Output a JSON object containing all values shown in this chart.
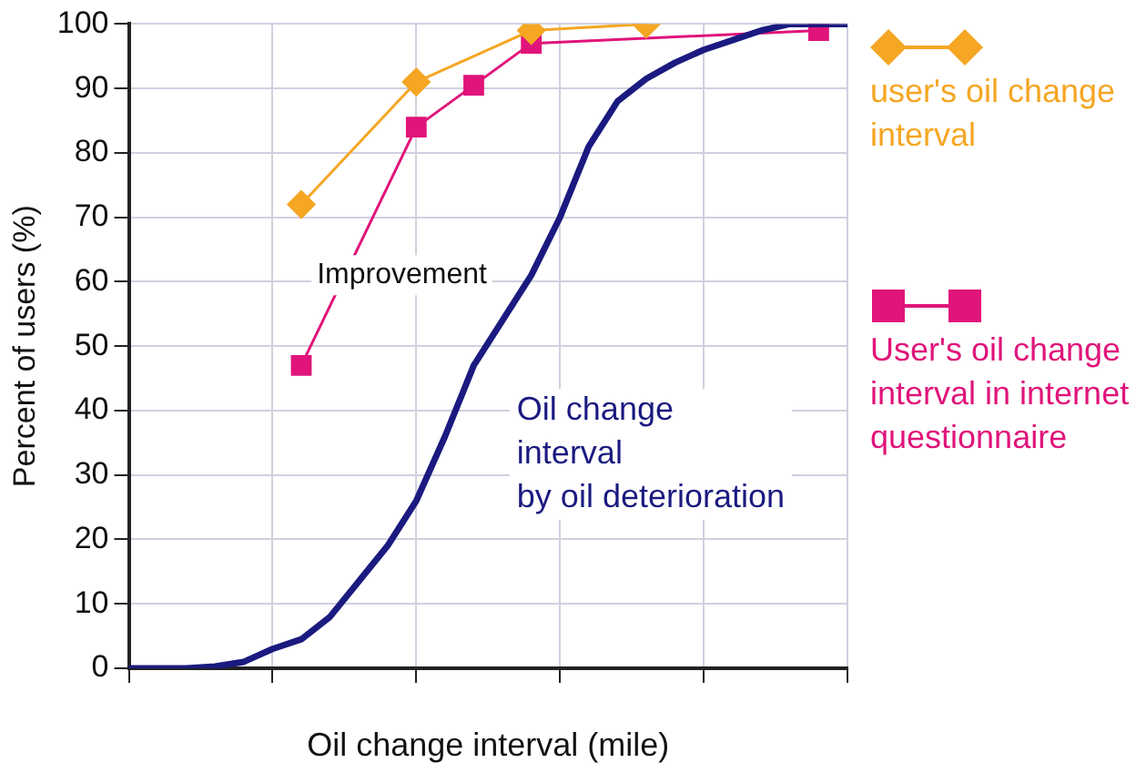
{
  "chart_data": {
    "type": "line",
    "xlabel": "Oil change interval (mile)",
    "ylabel": "Percent of users (%)",
    "categories": [
      null,
      null,
      null,
      null,
      null,
      null,
      null,
      null,
      null,
      null,
      null,
      null,
      null,
      null,
      null,
      null,
      null,
      null,
      null,
      null,
      null,
      null,
      null,
      null,
      null,
      null
    ],
    "ylim": [
      0,
      100
    ],
    "yticks": [
      0,
      10,
      20,
      30,
      40,
      50,
      60,
      70,
      80,
      90,
      100
    ],
    "grid": true,
    "legend": "right",
    "annotations": [
      "Improvement"
    ],
    "series": [
      {
        "name": "user's oil change interval",
        "color": "#f5a623",
        "marker": "diamond",
        "values": [
          null,
          null,
          null,
          null,
          null,
          null,
          72,
          null,
          null,
          null,
          91,
          null,
          null,
          null,
          99,
          null,
          null,
          null,
          100,
          null,
          null,
          null,
          null,
          null,
          null,
          null
        ]
      },
      {
        "name": "User's oil change interval in internet questionnaire",
        "color": "#e0147a",
        "marker": "square",
        "values": [
          null,
          null,
          null,
          null,
          null,
          null,
          47,
          null,
          null,
          null,
          84,
          null,
          90.5,
          null,
          97,
          null,
          null,
          null,
          null,
          null,
          null,
          null,
          null,
          null,
          99,
          null
        ]
      },
      {
        "name": "Oil change interval by oil deterioration",
        "color": "#1a1a80",
        "marker": "none",
        "values": [
          0,
          0,
          0,
          0.3,
          1,
          3,
          4.5,
          8,
          13.5,
          19,
          26,
          36,
          47,
          54,
          61,
          70,
          81,
          88,
          91.5,
          94,
          96,
          97.5,
          99,
          100,
          100,
          100
        ]
      }
    ]
  }
}
